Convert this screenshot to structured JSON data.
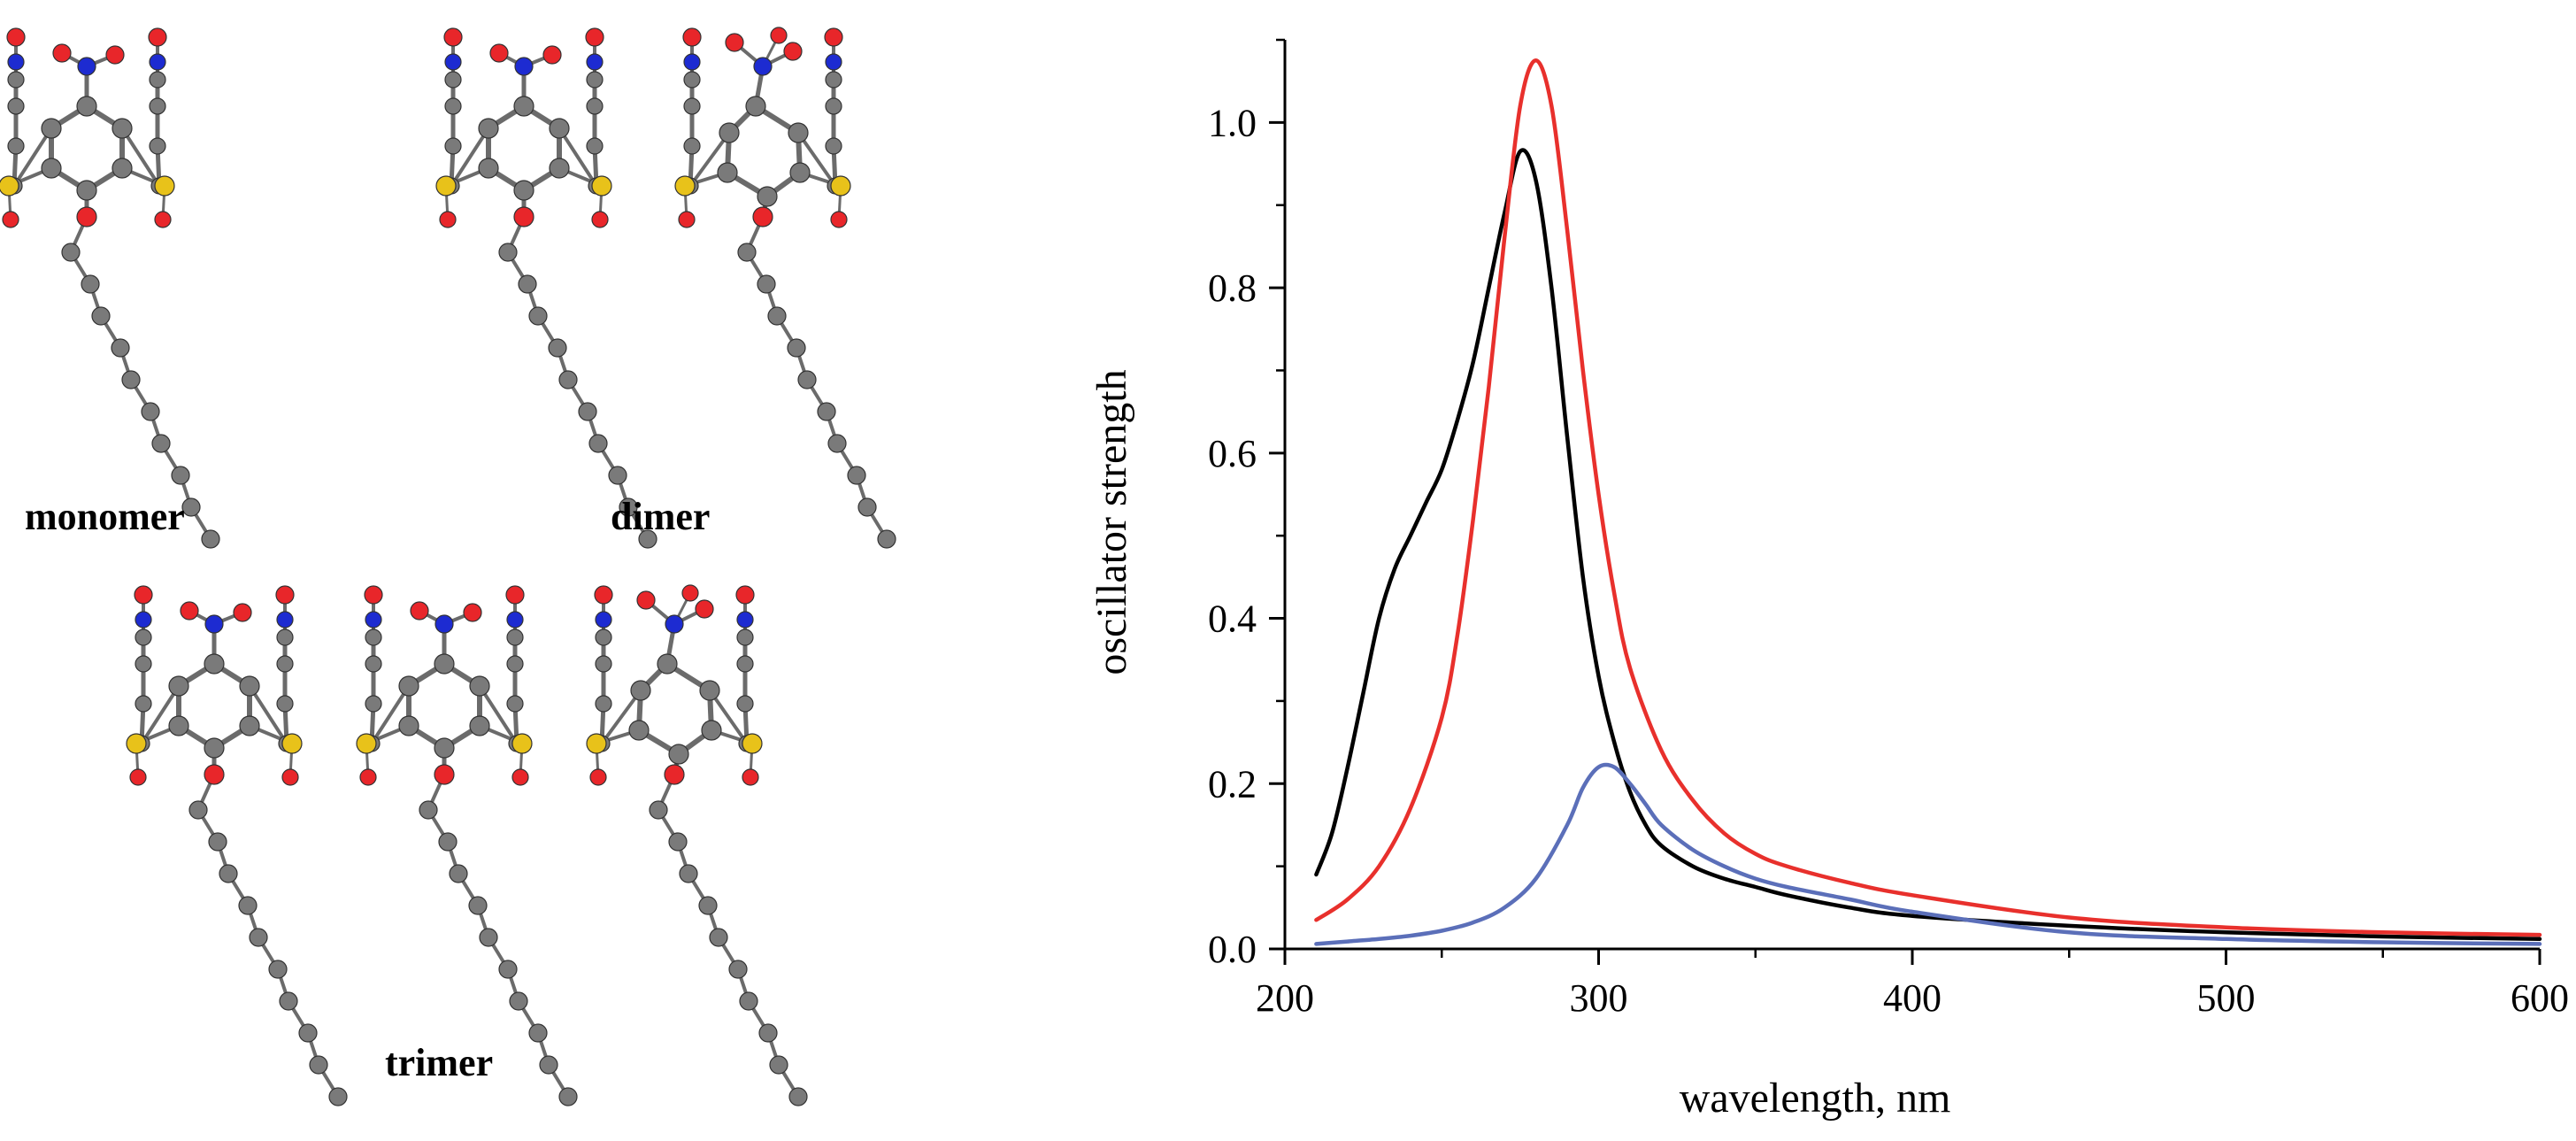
{
  "panel_a": {
    "captions": {
      "monomer": "monomer",
      "dimer": "dimer",
      "trimer": "trimer"
    },
    "atom_colors": {
      "carbon": "#7a7a7a",
      "oxygen": "#e8262a",
      "nitrogen": "#1d2bd1",
      "sulfur": "#e8c21a",
      "bond": "#6b6b6b"
    }
  },
  "chart_data": {
    "type": "line",
    "title": "",
    "xlabel": "wavelength, nm",
    "ylabel": "oscillator strength",
    "xlim": [
      200,
      600
    ],
    "ylim": [
      0,
      1.1
    ],
    "xticks": [
      200,
      300,
      400,
      500,
      600
    ],
    "yticks": [
      0.0,
      0.2,
      0.4,
      0.6,
      0.8,
      1.0
    ],
    "ytick_labels": [
      "0.0",
      "0.2",
      "0.4",
      "0.6",
      "0.8",
      "1.0"
    ],
    "grid": false,
    "legend": "none",
    "series": [
      {
        "color": "#000000",
        "x": [
          210,
          215,
          220,
          225,
          230,
          235,
          240,
          245,
          250,
          255,
          260,
          265,
          270,
          275,
          280,
          285,
          290,
          295,
          300,
          305,
          310,
          315,
          320,
          330,
          340,
          350,
          360,
          380,
          400,
          450,
          500,
          550,
          600
        ],
        "y": [
          0.09,
          0.14,
          0.22,
          0.31,
          0.4,
          0.46,
          0.5,
          0.54,
          0.58,
          0.64,
          0.71,
          0.8,
          0.89,
          0.965,
          0.93,
          0.8,
          0.62,
          0.45,
          0.33,
          0.25,
          0.19,
          0.15,
          0.125,
          0.1,
          0.085,
          0.075,
          0.065,
          0.05,
          0.04,
          0.028,
          0.02,
          0.015,
          0.012
        ]
      },
      {
        "color": "#e8302c",
        "x": [
          210,
          220,
          230,
          240,
          250,
          255,
          260,
          265,
          270,
          275,
          280,
          285,
          290,
          295,
          300,
          305,
          310,
          320,
          330,
          340,
          350,
          360,
          380,
          400,
          450,
          500,
          550,
          600
        ],
        "y": [
          0.035,
          0.06,
          0.1,
          0.17,
          0.28,
          0.38,
          0.52,
          0.68,
          0.86,
          1.02,
          1.075,
          1.02,
          0.87,
          0.7,
          0.55,
          0.43,
          0.34,
          0.24,
          0.18,
          0.14,
          0.115,
          0.1,
          0.08,
          0.065,
          0.038,
          0.026,
          0.02,
          0.017
        ]
      },
      {
        "color": "#5b6fb9",
        "x": [
          210,
          220,
          230,
          240,
          250,
          260,
          270,
          280,
          290,
          295,
          300,
          305,
          310,
          315,
          320,
          330,
          340,
          350,
          360,
          380,
          400,
          450,
          500,
          550,
          600
        ],
        "y": [
          0.006,
          0.009,
          0.012,
          0.016,
          0.022,
          0.032,
          0.05,
          0.085,
          0.15,
          0.195,
          0.22,
          0.22,
          0.2,
          0.175,
          0.15,
          0.12,
          0.1,
          0.085,
          0.075,
          0.06,
          0.045,
          0.02,
          0.012,
          0.008,
          0.006
        ]
      }
    ]
  }
}
